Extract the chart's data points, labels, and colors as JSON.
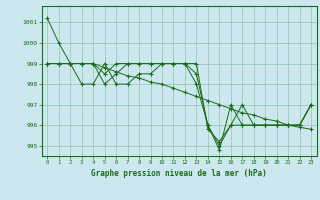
{
  "title": "Graphe pression niveau de la mer (hPa)",
  "background_color": "#cce8ee",
  "grid_color": "#99ccbb",
  "line_color": "#1a6b1a",
  "xlim": [
    -0.5,
    23.5
  ],
  "ylim": [
    994.5,
    1001.8
  ],
  "yticks": [
    995,
    996,
    997,
    998,
    999,
    1000,
    1001
  ],
  "xticks": [
    0,
    1,
    2,
    3,
    4,
    5,
    6,
    7,
    8,
    9,
    10,
    11,
    12,
    13,
    14,
    15,
    16,
    17,
    18,
    19,
    20,
    21,
    22,
    23
  ],
  "series": [
    [
      1001.2,
      1000.0,
      999.0,
      999.0,
      999.0,
      998.8,
      998.6,
      998.4,
      998.3,
      998.1,
      998.0,
      997.8,
      997.6,
      997.4,
      997.2,
      997.0,
      996.8,
      996.6,
      996.5,
      996.3,
      996.2,
      996.0,
      995.9,
      995.8
    ],
    [
      999.0,
      999.0,
      999.0,
      998.0,
      998.0,
      999.0,
      998.0,
      998.0,
      998.5,
      998.5,
      999.0,
      999.0,
      999.0,
      998.0,
      996.0,
      995.0,
      996.0,
      997.0,
      996.0,
      996.0,
      996.0,
      996.0,
      996.0,
      997.0
    ],
    [
      999.0,
      999.0,
      999.0,
      999.0,
      999.0,
      998.5,
      999.0,
      999.0,
      999.0,
      999.0,
      999.0,
      999.0,
      999.0,
      998.5,
      996.0,
      994.8,
      997.0,
      996.0,
      996.0,
      996.0,
      996.0,
      996.0,
      996.0,
      997.0
    ],
    [
      999.0,
      999.0,
      999.0,
      999.0,
      999.0,
      998.0,
      998.5,
      999.0,
      999.0,
      999.0,
      999.0,
      999.0,
      999.0,
      999.0,
      995.8,
      995.2,
      996.0,
      996.0,
      996.0,
      996.0,
      996.0,
      996.0,
      996.0,
      997.0
    ]
  ]
}
